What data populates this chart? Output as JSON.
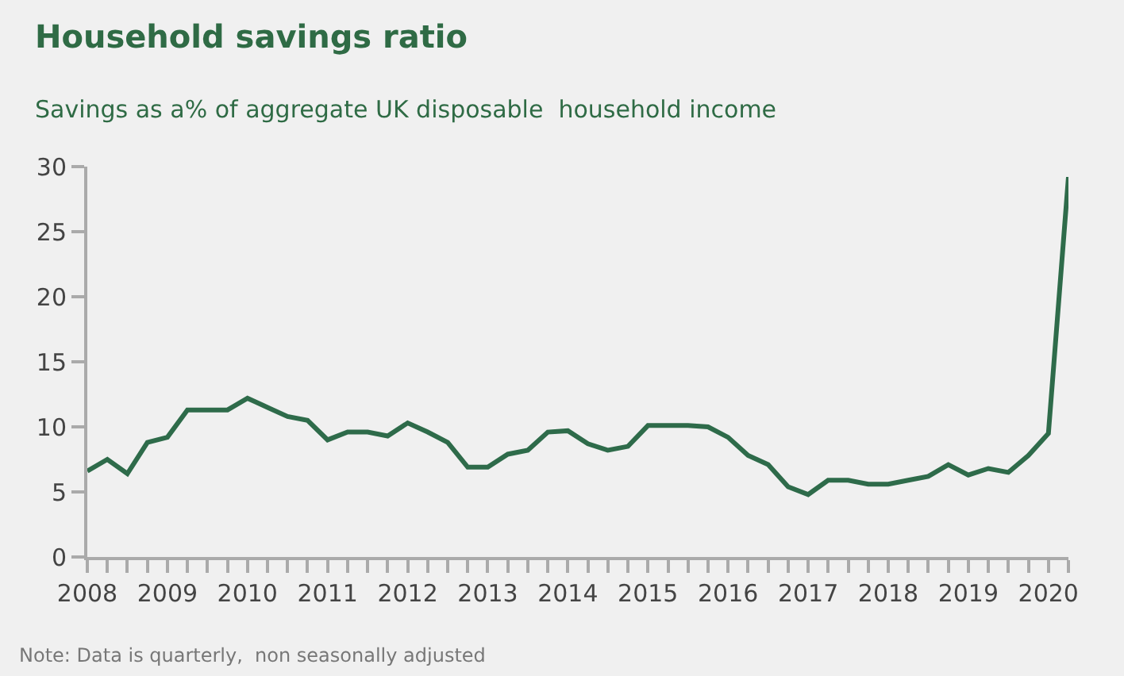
{
  "chart_data": {
    "type": "line",
    "title": "Household savings ratio",
    "subtitle": "Savings as a% of aggregate UK disposable  household income",
    "annotations": [
      "Note: Data is quarterly,  non seasonally adjusted"
    ],
    "x": [
      2008,
      2008.25,
      2008.5,
      2008.75,
      2009,
      2009.25,
      2009.5,
      2009.75,
      2010,
      2010.25,
      2010.5,
      2010.75,
      2011,
      2011.25,
      2011.5,
      2011.75,
      2012,
      2012.25,
      2012.5,
      2012.75,
      2013,
      2013.25,
      2013.5,
      2013.75,
      2014,
      2014.25,
      2014.5,
      2014.75,
      2015,
      2015.25,
      2015.5,
      2015.75,
      2016,
      2016.25,
      2016.5,
      2016.75,
      2017,
      2017.25,
      2017.5,
      2017.75,
      2018,
      2018.25,
      2018.5,
      2018.75,
      2019,
      2019.25,
      2019.5,
      2019.75,
      2020,
      2020.25
    ],
    "series": [
      {
        "color": "#2e6b4a",
        "values": [
          6.6,
          7.5,
          6.4,
          8.8,
          9.2,
          11.3,
          11.3,
          11.3,
          12.2,
          11.5,
          10.8,
          10.5,
          9.0,
          9.6,
          9.6,
          9.3,
          10.3,
          9.6,
          8.8,
          6.9,
          6.9,
          7.9,
          8.2,
          9.6,
          9.7,
          8.7,
          8.2,
          8.5,
          10.1,
          10.1,
          10.1,
          10.0,
          9.2,
          7.8,
          7.1,
          5.4,
          4.8,
          5.9,
          5.9,
          5.6,
          5.6,
          5.9,
          6.2,
          7.1,
          6.3,
          6.8,
          6.5,
          7.8,
          9.5,
          29.2
        ]
      }
    ],
    "xlim": [
      2008,
      2020.25
    ],
    "xticks": [
      2008,
      {
        "value": 2008.25,
        "label": null
      },
      {
        "value": 2008.5,
        "label": null
      },
      {
        "value": 2008.75,
        "label": null
      },
      2009,
      {
        "value": 2009.25,
        "label": null
      },
      {
        "value": 2009.5,
        "label": null
      },
      {
        "value": 2009.75,
        "label": null
      },
      2010,
      {
        "value": 2010.25,
        "label": null
      },
      {
        "value": 2010.5,
        "label": null
      },
      {
        "value": 2010.75,
        "label": null
      },
      2011,
      {
        "value": 2011.25,
        "label": null
      },
      {
        "value": 2011.5,
        "label": null
      },
      {
        "value": 2011.75,
        "label": null
      },
      2012,
      {
        "value": 2012.25,
        "label": null
      },
      {
        "value": 2012.5,
        "label": null
      },
      {
        "value": 2012.75,
        "label": null
      },
      2013,
      {
        "value": 2013.25,
        "label": null
      },
      {
        "value": 2013.5,
        "label": null
      },
      {
        "value": 2013.75,
        "label": null
      },
      2014,
      {
        "value": 2014.25,
        "label": null
      },
      {
        "value": 2014.5,
        "label": null
      },
      {
        "value": 2014.75,
        "label": null
      },
      2015,
      {
        "value": 2015.25,
        "label": null
      },
      {
        "value": 2015.5,
        "label": null
      },
      {
        "value": 2015.75,
        "label": null
      },
      2016,
      {
        "value": 2016.25,
        "label": null
      },
      {
        "value": 2016.5,
        "label": null
      },
      {
        "value": 2016.75,
        "label": null
      },
      2017,
      {
        "value": 2017.25,
        "label": null
      },
      {
        "value": 2017.5,
        "label": null
      },
      {
        "value": 2017.75,
        "label": null
      },
      2018,
      {
        "value": 2018.25,
        "label": null
      },
      {
        "value": 2018.5,
        "label": null
      },
      {
        "value": 2018.75,
        "label": null
      },
      2019,
      {
        "value": 2019.25,
        "label": null
      },
      {
        "value": 2019.5,
        "label": null
      },
      {
        "value": 2019.75,
        "label": null
      },
      2020,
      {
        "value": 2020.25,
        "label": null
      }
    ],
    "ylim": [
      0,
      30
    ],
    "yticks": [
      0,
      5,
      10,
      15,
      20,
      25,
      30
    ],
    "grid": false,
    "marker": "none",
    "line_style": "solid"
  }
}
